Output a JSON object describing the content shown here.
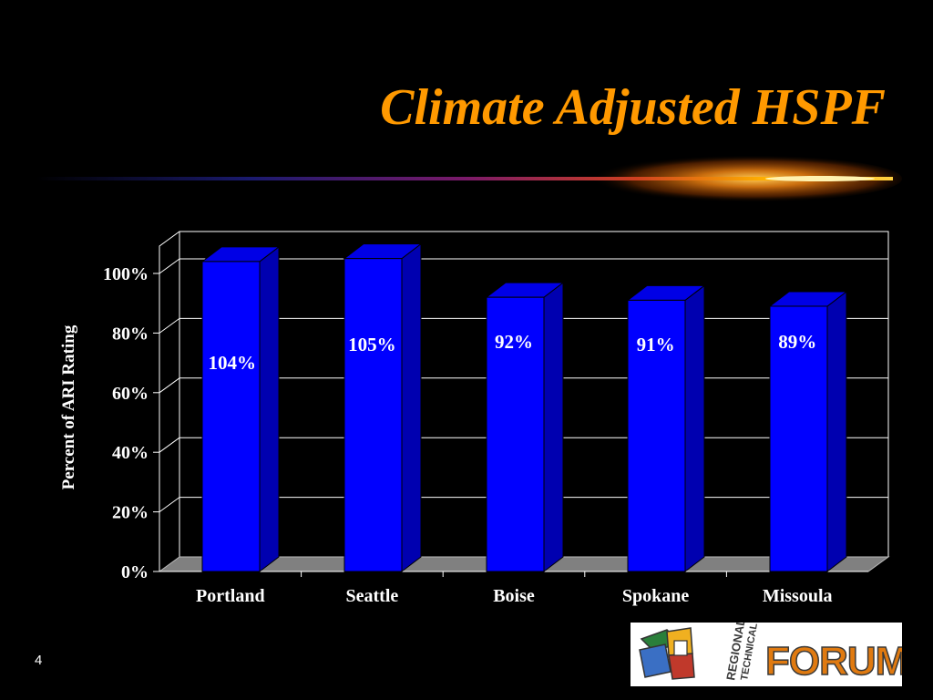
{
  "slide": {
    "title": "Climate Adjusted HSPF",
    "number": "4",
    "title_color": "#ff9900",
    "background": "#000000"
  },
  "logo": {
    "wordmark": "FORUM",
    "vertical_text": [
      "REGIONAL",
      "TECHNICAL"
    ],
    "icon": "boxes-icon"
  },
  "chart_data": {
    "type": "bar",
    "three_d": true,
    "categories": [
      "Portland",
      "Seattle",
      "Boise",
      "Spokane",
      "Missoula"
    ],
    "values": [
      104,
      105,
      92,
      91,
      89
    ],
    "data_labels": [
      "104%",
      "105%",
      "92%",
      "91%",
      "89%"
    ],
    "title": "",
    "xlabel": "",
    "ylabel": "Percent of ARI Rating",
    "ylim": [
      0,
      100
    ],
    "yticks": [
      "0%",
      "20%",
      "40%",
      "60%",
      "80%",
      "100%"
    ],
    "grid": true,
    "legend": "none",
    "bar_color": "#0000ff",
    "floor_color": "#808080"
  }
}
